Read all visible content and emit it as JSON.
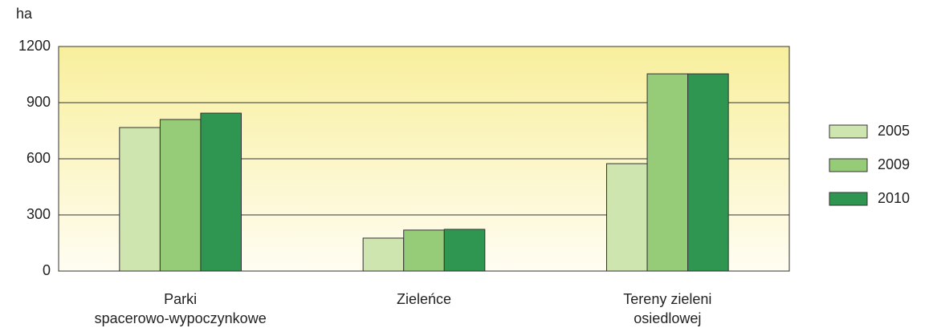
{
  "chart_data": {
    "type": "bar",
    "y_label": "ha",
    "categories": [
      "Parki\nspacerowo-wypoczynkowe",
      "Zieleńce",
      "Tereny zieleni\nosiedlowej"
    ],
    "series": [
      {
        "name": "2005",
        "color": "#cfe5b0",
        "values": [
          767,
          176,
          574
        ]
      },
      {
        "name": "2009",
        "color": "#96cb78",
        "values": [
          810,
          219,
          1054
        ]
      },
      {
        "name": "2010",
        "color": "#2e9650",
        "values": [
          844,
          223,
          1054
        ]
      }
    ],
    "ylim": [
      0,
      1200
    ],
    "yticks": [
      0,
      300,
      600,
      900,
      1200
    ],
    "grid": true,
    "legend": "right"
  }
}
